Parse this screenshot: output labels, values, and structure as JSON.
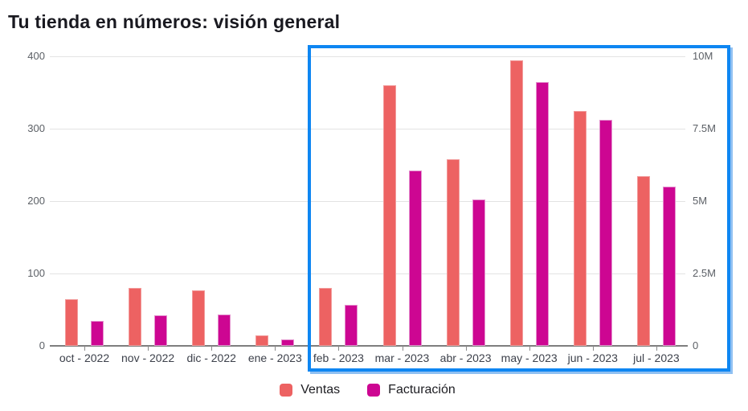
{
  "page": {
    "title": "Tu tienda en números: visión general"
  },
  "chart_data": {
    "type": "bar",
    "title": "Tu tienda en números: visión general",
    "categories": [
      "oct - 2022",
      "nov - 2022",
      "dic - 2022",
      "ene - 2023",
      "feb - 2023",
      "mar - 2023",
      "abr - 2023",
      "may - 2023",
      "jun - 2023",
      "jul - 2023"
    ],
    "series": [
      {
        "name": "Ventas",
        "axis": "left",
        "color": "#ED6262",
        "values": [
          65,
          80,
          77,
          15,
          80,
          360,
          258,
          395,
          325,
          235
        ]
      },
      {
        "name": "Facturación",
        "axis": "right",
        "color": "#CD0692",
        "values_millions": [
          0.86,
          1.05,
          1.07,
          0.23,
          1.43,
          6.05,
          5.05,
          9.1,
          7.8,
          5.5
        ]
      }
    ],
    "left_axis": {
      "label": "",
      "range": [
        0,
        400
      ],
      "ticks": [
        0,
        100,
        200,
        300,
        400
      ]
    },
    "right_axis": {
      "label": "",
      "range_millions": [
        0,
        10
      ],
      "ticks": [
        "0",
        "2.5M",
        "5M",
        "7.5M",
        "10M"
      ]
    },
    "grid": true,
    "legend_position": "bottom",
    "highlight": {
      "shape": "rectangle",
      "border_color": "#0E86F2",
      "shadow_color": "#8FC0F2",
      "from_category": "feb - 2023",
      "to_category": "jul - 2023"
    }
  },
  "colors": {
    "background": "#FFFFFF",
    "title_text": "#191920",
    "axis_text": "#5C6066",
    "category_text": "#3D414B",
    "gridline": "#E3E3E3",
    "baseline": "#7E7E7E"
  }
}
